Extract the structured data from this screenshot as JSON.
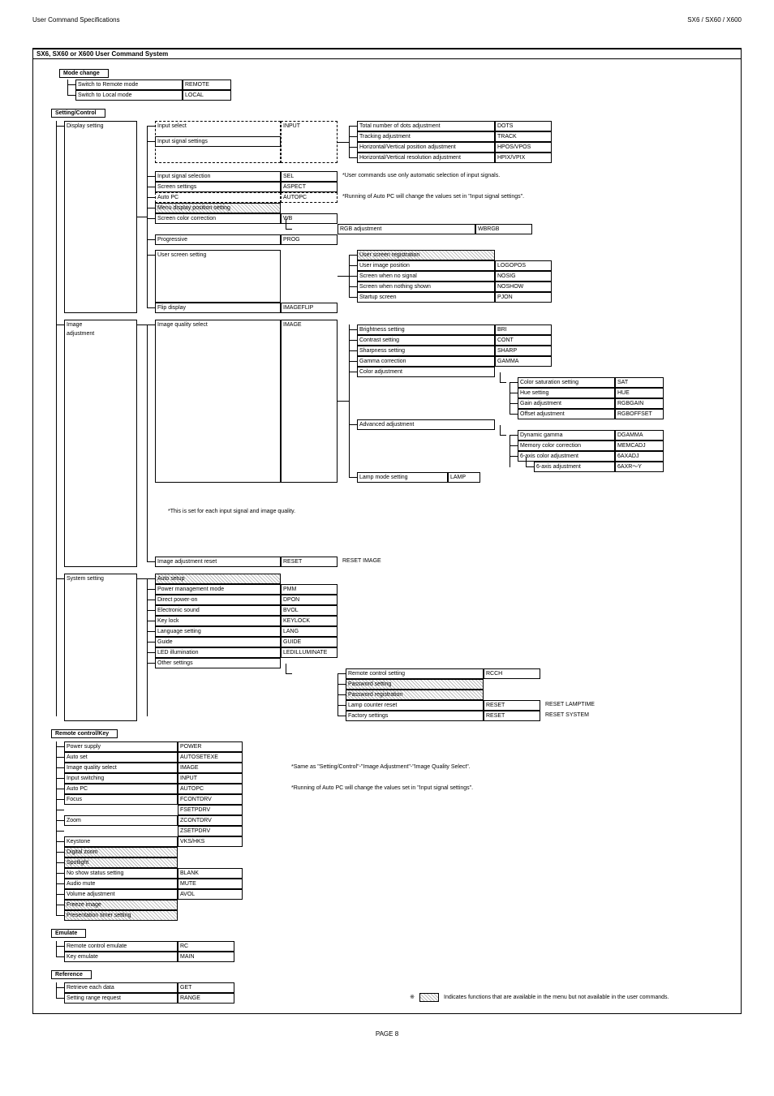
{
  "header": {
    "left": "User Command Specifications",
    "right": "SX6 / SX60 / X600"
  },
  "title": "SX6, SX60 or X600  User Command System",
  "mode_change": {
    "heading": "Mode change",
    "items": [
      {
        "label": "Switch to Remote mode",
        "cmd": "REMOTE"
      },
      {
        "label": "Switch to Local mode",
        "cmd": "LOCAL"
      }
    ]
  },
  "setting_control": {
    "heading": "Setting/Control",
    "display_setting": {
      "heading": "Display setting",
      "input_select": {
        "label": "Input select",
        "cmd": "INPUT"
      },
      "input_signal_settings": {
        "label": "Input signal settings",
        "children": [
          {
            "label": "Total number of dots adjustment",
            "cmd": "DOTS"
          },
          {
            "label": "Tracking adjustment",
            "cmd": "TRACK"
          },
          {
            "label": "Horizontal/Vertical position adjustment",
            "cmd": "HPOS/VPOS"
          },
          {
            "label": "Horizontal/Vertical resolution adjustment",
            "cmd": "HPIX/VPIX"
          }
        ]
      },
      "input_signal_selection": {
        "label": "Input signal selection",
        "cmd": "SEL",
        "note": "*User commands use only automatic selection of input signals."
      },
      "screen_settings": {
        "label": "Screen settings",
        "cmd": "ASPECT"
      },
      "auto_pc": {
        "label": "Auto PC",
        "cmd": "AUTOPC",
        "note": "*Running of Auto PC will change the values set in \"Input signal settings\"."
      },
      "menu_display_pos": {
        "label": "Menu display position setting",
        "hatched": true
      },
      "screen_color_corr": {
        "label": "Screen color correction",
        "cmd": "WB",
        "child": {
          "label": "RGB adjustment",
          "cmd": "WBRGB"
        }
      },
      "progressive": {
        "label": "Progressive",
        "cmd": "PROG"
      },
      "user_screen": {
        "label": "User screen setting",
        "children": [
          {
            "label": "User screen registration",
            "hatched": true
          },
          {
            "label": "User image position",
            "cmd": "LOGOPOS"
          },
          {
            "label": "Screen when no signal",
            "cmd": "NOSIG"
          },
          {
            "label": "Screen when nothing shown",
            "cmd": "NOSHOW"
          },
          {
            "label": "Startup screen",
            "cmd": "PJON"
          }
        ]
      },
      "flip": {
        "label": "Flip display",
        "cmd": "IMAGEFLIP"
      }
    },
    "image_adjustment": {
      "heading1": "Image",
      "heading2": "adjustment",
      "quality_select": {
        "label": "Image quality select",
        "cmd": "IMAGE"
      },
      "note_set": "*This is set for each input signal and image quality.",
      "basic": [
        {
          "label": "Brightness setting",
          "cmd": "BRI"
        },
        {
          "label": "Contrast setting",
          "cmd": "CONT"
        },
        {
          "label": "Sharpness setting",
          "cmd": "SHARP"
        },
        {
          "label": "Gamma correction",
          "cmd": "GAMMA"
        }
      ],
      "color_adj": {
        "label": "Color adjustment",
        "children": [
          {
            "label": "Color saturation setting",
            "cmd": "SAT"
          },
          {
            "label": "Hue setting",
            "cmd": "HUE"
          },
          {
            "label": "Gain adjustment",
            "cmd": "RGBGAIN"
          },
          {
            "label": "Offset adjustment",
            "cmd": "RGBOFFSET"
          }
        ]
      },
      "advanced": {
        "label": "Advanced adjustment",
        "children": [
          {
            "label": "Dynamic gamma",
            "cmd": "DGAMMA"
          },
          {
            "label": "Memory color correction",
            "cmd": "MEMCADJ"
          },
          {
            "label": "6-axis color adjustment",
            "cmd": "6AXADJ"
          }
        ],
        "sub": {
          "label": "6-axis adjustment",
          "cmd": "6AXR～Y"
        }
      },
      "lamp_mode": {
        "label": "Lamp mode setting",
        "cmd": "LAMP"
      },
      "reset": {
        "label": "Image adjustment reset",
        "cmd": "RESET",
        "extra": "RESET IMAGE"
      }
    },
    "system_setting": {
      "heading": "System setting",
      "auto_setup": {
        "label": "Auto setup",
        "hatched": true
      },
      "list": [
        {
          "label": "Power management mode",
          "cmd": "PMM"
        },
        {
          "label": "Direct power-on",
          "cmd": "DPON"
        },
        {
          "label": "Electronic sound",
          "cmd": "BVOL"
        },
        {
          "label": "Key lock",
          "cmd": "KEYLOCK"
        },
        {
          "label": "Language setting",
          "cmd": "LANG"
        },
        {
          "label": "Guide",
          "cmd": "GUIDE"
        },
        {
          "label": "LED illumination",
          "cmd": "LEDILLUMINATE"
        }
      ],
      "other": {
        "label": "Other settings",
        "children": [
          {
            "label": "Remote control setting",
            "cmd": "RCCH"
          },
          {
            "label": "Password setting",
            "hatched": true
          },
          {
            "label": "Password registration",
            "hatched": true
          },
          {
            "label": "Lamp counter reset",
            "cmd": "RESET",
            "extra": "RESET LAMPTIME"
          },
          {
            "label": "Factory settings",
            "cmd": "RESET",
            "extra": "RESET SYSTEM"
          }
        ]
      }
    }
  },
  "remote_key": {
    "heading": "Remote control/Key",
    "items": [
      {
        "label": "Power supply",
        "cmd": "POWER"
      },
      {
        "label": "Auto set",
        "cmd": "AUTOSETEXE"
      },
      {
        "label": "Image quality select",
        "cmd": "IMAGE",
        "note": "*Same as \"Setting/Control\"-\"Image Adjustment\"-\"Image Quality Select\"."
      },
      {
        "label": "Input switching",
        "cmd": "INPUT"
      },
      {
        "label": "Auto PC",
        "cmd": "AUTOPC",
        "note": "*Running of Auto PC will change the values set in \"Input signal settings\"."
      },
      {
        "label": "Focus",
        "cmd": "FCONTDRV"
      },
      {
        "label": "",
        "cmd": "FSETPDRV",
        "nolabel": true
      },
      {
        "label": "Zoom",
        "cmd": "ZCONTDRV"
      },
      {
        "label": "",
        "cmd": "ZSETPDRV",
        "nolabel": true
      },
      {
        "label": "Keystone",
        "cmd": "VKS/HKS"
      },
      {
        "label": "Digital zoom",
        "hatched": true
      },
      {
        "label": "Spotlight",
        "hatched": true
      },
      {
        "label": "No show status setting",
        "cmd": "BLANK"
      },
      {
        "label": "Audio mute",
        "cmd": "MUTE"
      },
      {
        "label": "Volume adjustment",
        "cmd": "AVOL"
      },
      {
        "label": "Freeze image",
        "hatched": true
      },
      {
        "label": "Presentation timer setting",
        "hatched": true
      }
    ]
  },
  "emulate": {
    "heading": "Emulate",
    "items": [
      {
        "label": "Remote control emulate",
        "cmd": "RC"
      },
      {
        "label": "Key emulate",
        "cmd": "MAIN"
      }
    ]
  },
  "reference": {
    "heading": "Reference",
    "items": [
      {
        "label": "Retrieve each data",
        "cmd": "GET"
      },
      {
        "label": "Setting range request",
        "cmd": "RANGE"
      }
    ],
    "legend_prefix": "※",
    "legend_text": "Indicates functions that are available in the menu but not available in the user commands."
  },
  "page": "PAGE 8"
}
